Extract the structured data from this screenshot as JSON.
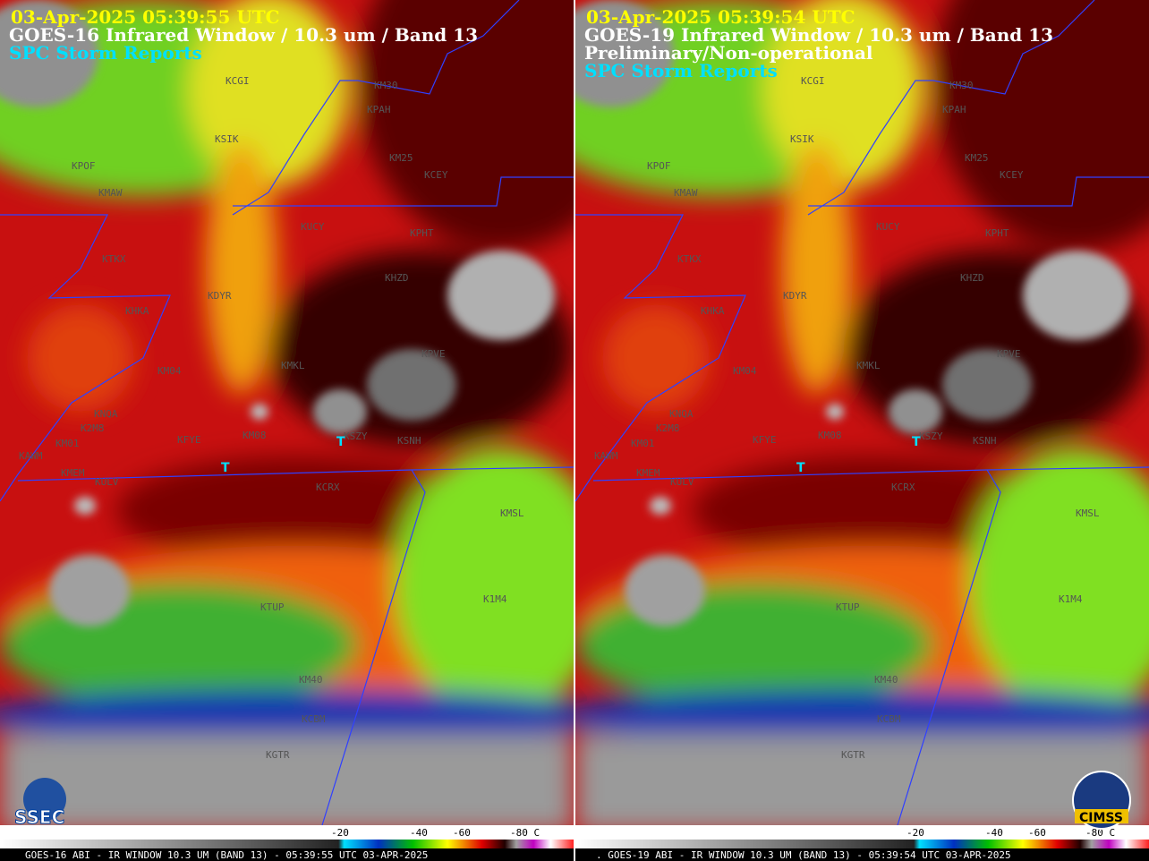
{
  "panels": [
    {
      "date_time": "03-Apr-2025  05:39:55 UTC",
      "title": "GOES-16 Infrared Window / 10.3 um / Band 13",
      "lines": [
        "SPC Storm Reports"
      ],
      "footer": "GOES-16 ABI - IR WINDOW 10.3 UM (BAND 13) - 05:39:55 UTC 03-APR-2025",
      "logo": "SSEC"
    },
    {
      "date_time": "03-Apr-2025  05:39:54 UTC",
      "title": "GOES-19 Infrared Window / 10.3 um / Band 13",
      "lines": [
        "Preliminary/Non-operational",
        "SPC Storm Reports"
      ],
      "footer": ". GOES-19 ABI - IR WINDOW 10.3 UM (BAND 13) - 05:39:54 UTC 03-APR-2025",
      "logo": "CIMSS"
    }
  ],
  "stations": [
    "KCGI",
    "KM30",
    "KPAH",
    "KSIK",
    "KPOF",
    "KM25",
    "KCEY",
    "KMAW",
    "KUCY",
    "KPHT",
    "KTKX",
    "KHZD",
    "KDYR",
    "KHKA",
    "KPVE",
    "KMKL",
    "KM04",
    "KNQA",
    "K2M8",
    "KM01",
    "KFYE",
    "KM08",
    "KSZY",
    "KSNH",
    "KAWM",
    "KMEM",
    "KULV",
    "KCRX",
    "KMSL",
    "KTUP",
    "K1M4",
    "KM40",
    "KCBM",
    "KGTR"
  ],
  "storm_report_symbol": "T",
  "colorbar_labels": [
    "-20",
    "-40",
    "-60",
    "-80 C"
  ]
}
